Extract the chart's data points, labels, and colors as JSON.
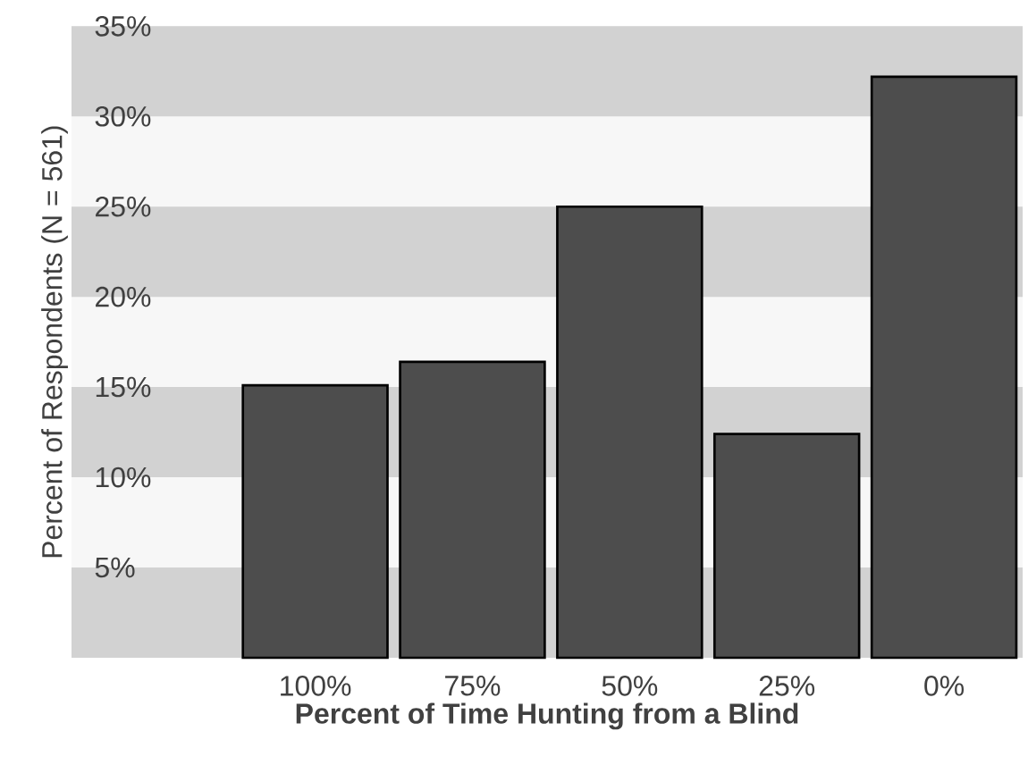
{
  "chart_data": {
    "type": "bar",
    "xlabel": "Percent of Time Hunting from a Blind",
    "ylabel": "Percent of Respondents (N = 561)",
    "categories": [
      "100%",
      "75%",
      "50%",
      "25%",
      "0%"
    ],
    "values": [
      15.1,
      16.4,
      25.0,
      12.4,
      32.2
    ],
    "color": "#4d4d4d",
    "ylim": [
      0,
      35
    ],
    "yticks": [
      {
        "value": 5,
        "label": "5%"
      },
      {
        "value": 10,
        "label": "10%"
      },
      {
        "value": 15,
        "label": "15%"
      },
      {
        "value": 20,
        "label": "20%"
      },
      {
        "value": 25,
        "label": "25%"
      },
      {
        "value": 30,
        "label": "30%"
      },
      {
        "value": 35,
        "label": "35%"
      }
    ],
    "bands": [
      {
        "axis": "y",
        "from": 0,
        "to": 5,
        "color": "#d2d2d2"
      },
      {
        "axis": "y",
        "from": 10,
        "to": 15,
        "color": "#d2d2d2"
      },
      {
        "axis": "y",
        "from": 20,
        "to": 25,
        "color": "#d2d2d2"
      },
      {
        "axis": "y",
        "from": 30,
        "to": 35,
        "color": "#d2d2d2"
      }
    ]
  }
}
